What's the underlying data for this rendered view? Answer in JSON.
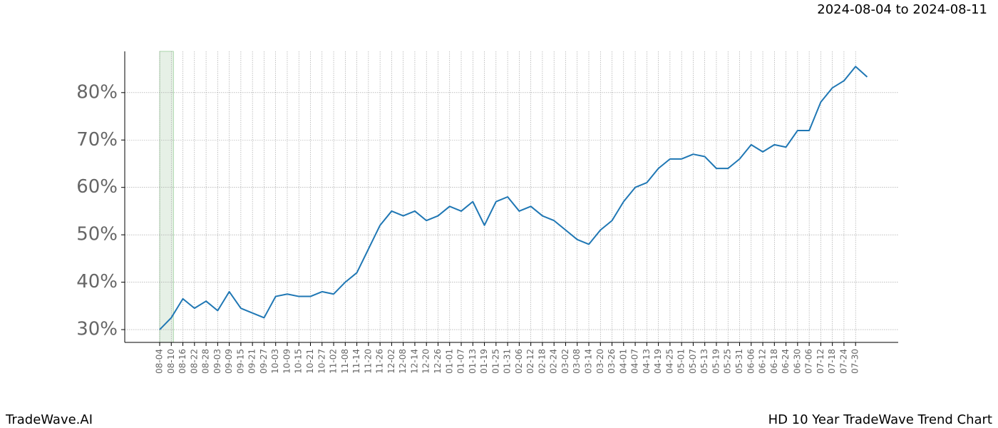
{
  "header": {
    "date_range": "2024-08-04 to 2024-08-11"
  },
  "footer": {
    "brand": "TradeWave.AI",
    "caption": "HD 10 Year TradeWave Trend Chart"
  },
  "chart_data": {
    "type": "line",
    "categories": [
      "08-04",
      "08-10",
      "08-16",
      "08-22",
      "08-28",
      "09-03",
      "09-09",
      "09-15",
      "09-21",
      "09-27",
      "10-03",
      "10-09",
      "10-15",
      "10-21",
      "10-27",
      "11-02",
      "11-08",
      "11-14",
      "11-20",
      "11-26",
      "12-02",
      "12-08",
      "12-14",
      "12-20",
      "12-26",
      "01-01",
      "01-07",
      "01-13",
      "01-19",
      "01-25",
      "01-31",
      "02-06",
      "02-12",
      "02-18",
      "02-24",
      "03-02",
      "03-08",
      "03-14",
      "03-20",
      "03-26",
      "04-01",
      "04-07",
      "04-13",
      "04-19",
      "04-25",
      "05-01",
      "05-07",
      "05-13",
      "05-19",
      "05-25",
      "05-31",
      "06-06",
      "06-12",
      "06-18",
      "06-24",
      "06-30",
      "07-06",
      "07-12",
      "07-18",
      "07-24",
      "07-30",
      null
    ],
    "values": [
      30,
      32.5,
      36.5,
      34.5,
      36,
      34,
      38,
      34.5,
      33.5,
      32.5,
      37,
      37.5,
      37,
      37,
      38,
      37.5,
      40,
      42,
      47,
      52,
      55,
      54,
      55,
      53,
      54,
      56,
      55,
      57,
      52,
      57,
      58,
      55,
      56,
      54,
      53,
      51,
      49,
      48,
      51,
      53,
      57,
      60,
      61,
      64,
      66,
      66,
      67,
      66.5,
      64,
      64,
      66,
      69,
      67.5,
      69,
      68.5,
      72,
      72,
      78,
      81,
      82.5,
      85.5,
      83.3
    ],
    "color": "#1f77b4",
    "highlight_color": "#e6f0e6",
    "ylim": [
      27.3,
      88.7
    ],
    "yticks": [
      {
        "value": 30,
        "label": "30%"
      },
      {
        "value": 40,
        "label": "40%"
      },
      {
        "value": 50,
        "label": "50%"
      },
      {
        "value": 60,
        "label": "60%"
      },
      {
        "value": 70,
        "label": "70%"
      },
      {
        "value": 80,
        "label": "80%"
      }
    ],
    "grid": true
  }
}
